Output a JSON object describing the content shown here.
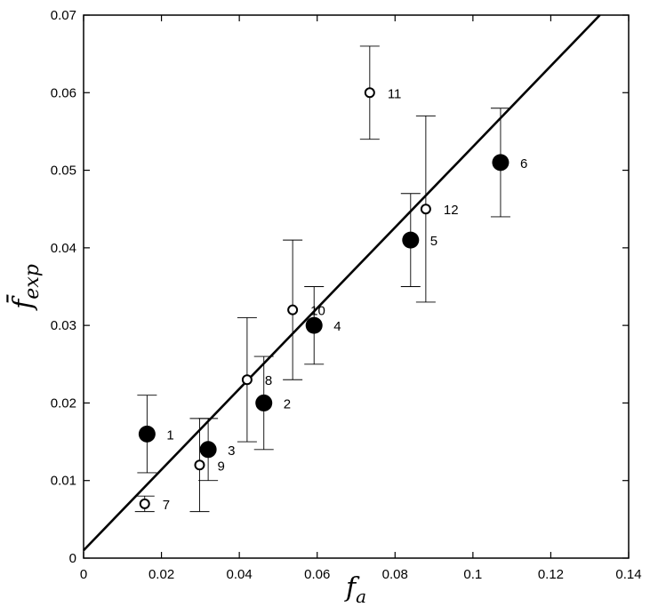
{
  "chart_data": {
    "type": "scatter",
    "title": "",
    "xlabel": {
      "main": "f",
      "sub": "a"
    },
    "ylabel": {
      "main": "f̄",
      "sub": "exp"
    },
    "xlim": [
      0,
      0.14
    ],
    "ylim": [
      0,
      0.07
    ],
    "xticks": [
      0,
      0.02,
      0.04,
      0.06,
      0.08,
      0.1,
      0.12,
      0.14
    ],
    "xtick_labels": [
      "0",
      "0.02",
      "0.04",
      "0.06",
      "0.08",
      "0.1",
      "0.12",
      "0.14"
    ],
    "yticks": [
      0,
      0.01,
      0.02,
      0.03,
      0.04,
      0.05,
      0.06,
      0.07
    ],
    "ytick_labels": [
      "0",
      "0.01",
      "0.02",
      "0.03",
      "0.04",
      "0.05",
      "0.06",
      "0.07"
    ],
    "grid": false,
    "fit_line": {
      "x": [
        0,
        0.1326
      ],
      "y": [
        0.001,
        0.07
      ]
    },
    "points": [
      {
        "label": "1",
        "x": 0.0163,
        "y": 0.016,
        "err_low": 0.011,
        "err_high": 0.021,
        "filled": true
      },
      {
        "label": "2",
        "x": 0.0463,
        "y": 0.02,
        "err_low": 0.014,
        "err_high": 0.026,
        "filled": true
      },
      {
        "label": "3",
        "x": 0.032,
        "y": 0.014,
        "err_low": 0.01,
        "err_high": 0.018,
        "filled": true
      },
      {
        "label": "4",
        "x": 0.0592,
        "y": 0.03,
        "err_low": 0.025,
        "err_high": 0.035,
        "filled": true
      },
      {
        "label": "5",
        "x": 0.084,
        "y": 0.041,
        "err_low": 0.035,
        "err_high": 0.047,
        "filled": true
      },
      {
        "label": "6",
        "x": 0.1071,
        "y": 0.051,
        "err_low": 0.044,
        "err_high": 0.058,
        "filled": true
      },
      {
        "label": "7",
        "x": 0.0157,
        "y": 0.007,
        "err_low": 0.006,
        "err_high": 0.008,
        "filled": false
      },
      {
        "label": "8",
        "x": 0.042,
        "y": 0.023,
        "err_low": 0.015,
        "err_high": 0.031,
        "filled": false
      },
      {
        "label": "9",
        "x": 0.0298,
        "y": 0.012,
        "err_low": 0.006,
        "err_high": 0.018,
        "filled": false
      },
      {
        "label": "10",
        "x": 0.0537,
        "y": 0.032,
        "err_low": 0.023,
        "err_high": 0.041,
        "filled": false
      },
      {
        "label": "11",
        "x": 0.0735,
        "y": 0.06,
        "err_low": 0.054,
        "err_high": 0.066,
        "filled": false
      },
      {
        "label": "12",
        "x": 0.0879,
        "y": 0.045,
        "err_low": 0.033,
        "err_high": 0.057,
        "filled": false
      }
    ]
  }
}
